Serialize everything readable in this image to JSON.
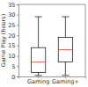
{
  "chart_data": {
    "type": "box",
    "y_label": "Game Play (hours)",
    "categories": [
      "Gaming",
      "Gaming+"
    ],
    "boxes": [
      {
        "min": 0.5,
        "q1": 2,
        "median": 7,
        "q3": 14,
        "max": 29
      },
      {
        "min": 0.5,
        "q1": 7,
        "median": 13,
        "q3": 19,
        "max": 29
      }
    ],
    "color": "#000000",
    "ylim": [
      0,
      35
    ],
    "yticks": [
      0,
      5,
      10,
      15,
      20,
      25,
      30,
      35
    ]
  }
}
